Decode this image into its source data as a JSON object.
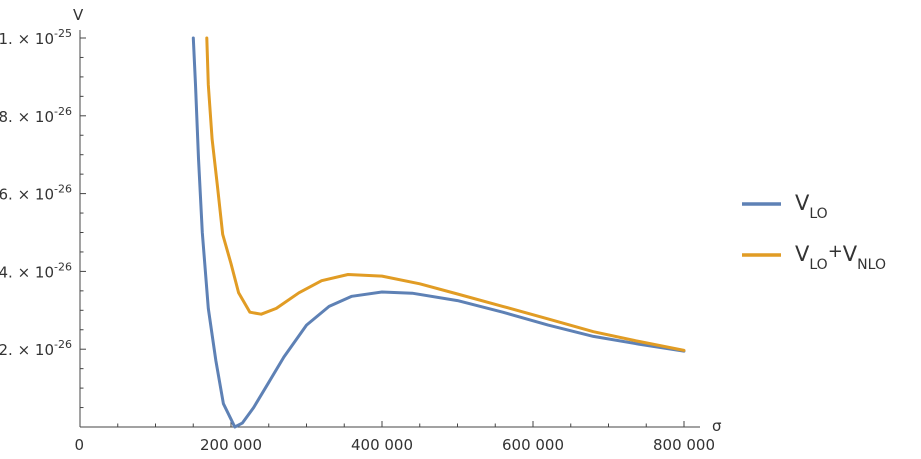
{
  "chart_data": {
    "type": "line",
    "xlabel": "σ",
    "ylabel": "V",
    "xlim": [
      0,
      800000
    ],
    "ylim": [
      0,
      1e-25
    ],
    "x_ticks": [
      {
        "value": 0,
        "label": "0"
      },
      {
        "value": 200000,
        "label": "200 000"
      },
      {
        "value": 400000,
        "label": "400 000"
      },
      {
        "value": 600000,
        "label": "600 000"
      },
      {
        "value": 800000,
        "label": "800 000"
      }
    ],
    "y_ticks": [
      {
        "value": 2e-26,
        "mantissa": "2.",
        "exponent": "-26"
      },
      {
        "value": 4e-26,
        "mantissa": "4.",
        "exponent": "-26"
      },
      {
        "value": 6e-26,
        "mantissa": "6.",
        "exponent": "-26"
      },
      {
        "value": 8e-26,
        "mantissa": "8.",
        "exponent": "-26"
      },
      {
        "value": 1e-25,
        "mantissa": "1.",
        "exponent": "-25"
      }
    ],
    "grid": false,
    "legend_position": "right",
    "series": [
      {
        "name": "V_LO",
        "legend_main": "V",
        "legend_sub": "LO",
        "color": "#5E81B5",
        "points": [
          [
            150000,
            1e-25
          ],
          [
            153000,
            8.8e-26
          ],
          [
            157000,
            6.9e-26
          ],
          [
            162000,
            5e-26
          ],
          [
            170000,
            3.05e-26
          ],
          [
            180000,
            1.7e-26
          ],
          [
            190000,
            6e-27
          ],
          [
            200000,
            2e-27
          ],
          [
            205000,
            0
          ],
          [
            215000,
            1e-27
          ],
          [
            230000,
            5e-27
          ],
          [
            250000,
            1.15e-26
          ],
          [
            270000,
            1.8e-26
          ],
          [
            300000,
            2.62e-26
          ],
          [
            330000,
            3.1e-26
          ],
          [
            360000,
            3.36e-26
          ],
          [
            400000,
            3.47e-26
          ],
          [
            440000,
            3.44e-26
          ],
          [
            500000,
            3.25e-26
          ],
          [
            560000,
            2.95e-26
          ],
          [
            620000,
            2.62e-26
          ],
          [
            680000,
            2.33e-26
          ],
          [
            740000,
            2.13e-26
          ],
          [
            800000,
            1.95e-26
          ]
        ]
      },
      {
        "name": "V_LO+V_NLO",
        "legend_main1": "V",
        "legend_sub1": "LO",
        "legend_plus": "+",
        "legend_main2": "V",
        "legend_sub2": "NLO",
        "color": "#E19C24",
        "points": [
          [
            168000,
            1e-25
          ],
          [
            170000,
            8.8e-26
          ],
          [
            175000,
            7.4e-26
          ],
          [
            182000,
            6.2e-26
          ],
          [
            189000,
            4.95e-26
          ],
          [
            200000,
            4.2e-26
          ],
          [
            210000,
            3.45e-26
          ],
          [
            225000,
            2.95e-26
          ],
          [
            240000,
            2.9e-26
          ],
          [
            260000,
            3.05e-26
          ],
          [
            290000,
            3.45e-26
          ],
          [
            320000,
            3.76e-26
          ],
          [
            355000,
            3.92e-26
          ],
          [
            400000,
            3.88e-26
          ],
          [
            450000,
            3.68e-26
          ],
          [
            500000,
            3.42e-26
          ],
          [
            560000,
            3.1e-26
          ],
          [
            620000,
            2.78e-26
          ],
          [
            680000,
            2.45e-26
          ],
          [
            740000,
            2.2e-26
          ],
          [
            800000,
            1.97e-26
          ]
        ]
      }
    ]
  }
}
